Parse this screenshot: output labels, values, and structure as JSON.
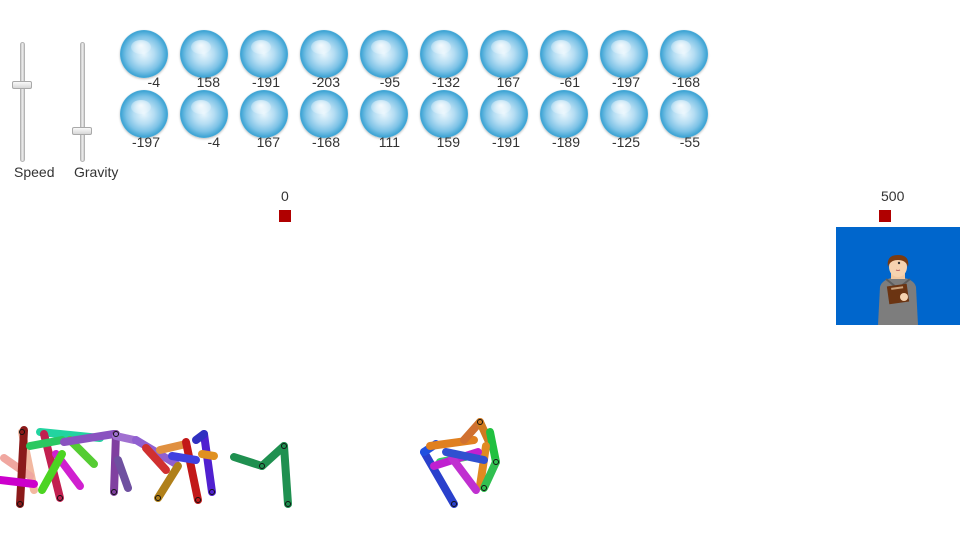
{
  "sliders": [
    {
      "label": "Speed",
      "level": 0.35
    },
    {
      "label": "Gravity",
      "level": 0.76
    }
  ],
  "balls_row1": [
    "-4",
    "158",
    "-191",
    "-203",
    "-95",
    "-132",
    "167",
    "-61",
    "-197",
    "-168"
  ],
  "balls_row2": [
    "-197",
    "-4",
    "167",
    "-168",
    "111",
    "159",
    "-191",
    "-189",
    "-125",
    "-55"
  ],
  "markers": {
    "start": "0",
    "end": "500"
  },
  "colors": {
    "marker": "#b00000",
    "panel": "#0066cc",
    "ball": "#3ea4d4"
  },
  "panel": {
    "icon": "person-with-clipboard-icon"
  }
}
